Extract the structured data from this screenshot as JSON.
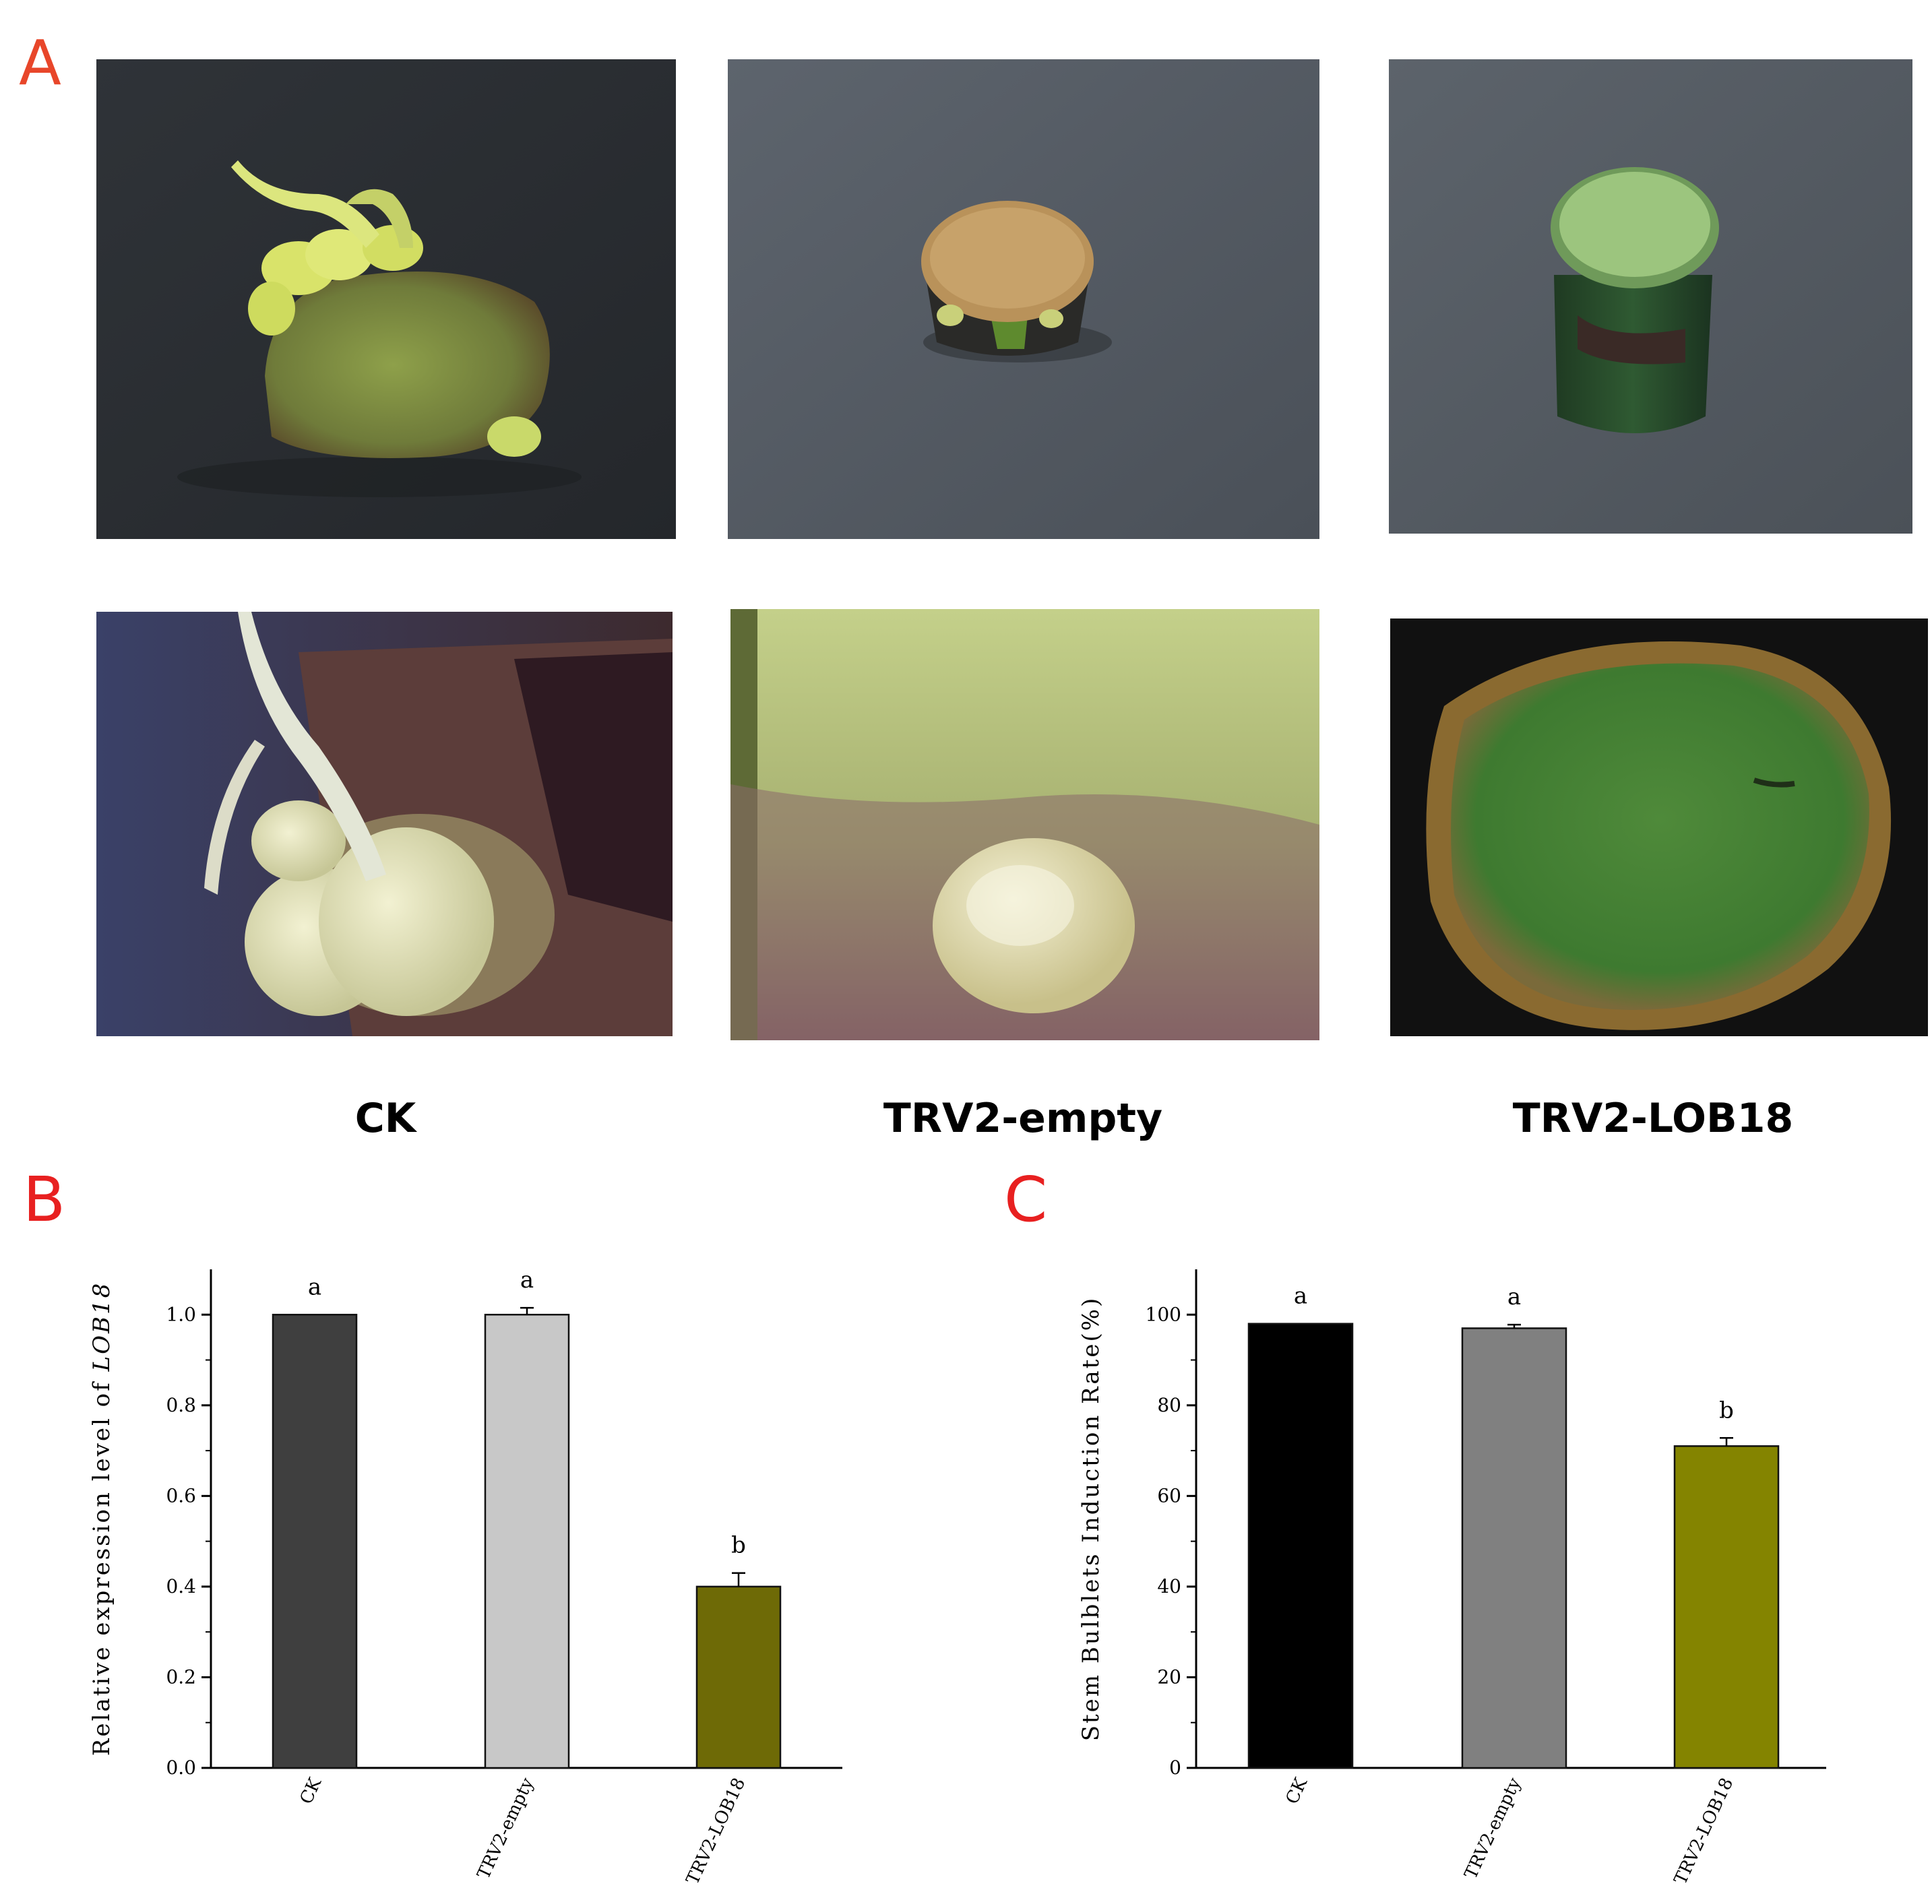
{
  "panel_a": {
    "letter": "A",
    "letter_color": "#e8462a",
    "photos_top": [
      {
        "name": "CK",
        "subject": "stem-segment-with-bulblets-and-shoots"
      },
      {
        "name": "TRV2-empty",
        "subject": "stem-segment-with-callus-top"
      },
      {
        "name": "TRV2-LOB18",
        "subject": "stem-segment-green-top"
      }
    ],
    "photos_bottom": [
      {
        "name": "CK",
        "subject": "closeup-bulblets-and-roots"
      },
      {
        "name": "TRV2-empty",
        "subject": "closeup-single-bulblet"
      },
      {
        "name": "TRV2-LOB18",
        "subject": "closeup-cross-section"
      }
    ],
    "group_labels": [
      "CK",
      "TRV2-empty",
      "TRV2-LOB18"
    ]
  },
  "panel_b": {
    "letter": "B",
    "letter_color": "#e82020"
  },
  "panel_c": {
    "letter": "C",
    "letter_color": "#e82020"
  },
  "chart_data": [
    {
      "type": "bar",
      "panel": "B",
      "categories": [
        "CK",
        "TRV2-empty",
        "TRV2-LOB18"
      ],
      "values": [
        1.0,
        1.0,
        0.4
      ],
      "errors": [
        0.0,
        0.015,
        0.03
      ],
      "significance": [
        "a",
        "a",
        "b"
      ],
      "colors": [
        "#3f3f3f",
        "#c8c8c8",
        "#6e6a06"
      ],
      "ylabel_prefix": "Relative expression level of ",
      "ylabel_gene": "LOB18",
      "ylim": [
        0,
        1.1
      ],
      "yticks": [
        "0.0",
        "0.2",
        "0.4",
        "0.6",
        "0.8",
        "1.0"
      ],
      "ytick_values": [
        0,
        0.2,
        0.4,
        0.6,
        0.8,
        1.0
      ]
    },
    {
      "type": "bar",
      "panel": "C",
      "categories": [
        "CK",
        "TRV2-empty",
        "TRV2-LOB18"
      ],
      "values": [
        98,
        97,
        71
      ],
      "errors": [
        0,
        0.8,
        1.8
      ],
      "significance": [
        "a",
        "a",
        "b"
      ],
      "colors": [
        "#000000",
        "#808080",
        "#848400"
      ],
      "ylabel": "Stem Bulblets Induction Rate(%)",
      "ylim": [
        0,
        110
      ],
      "yticks": [
        "0",
        "20",
        "40",
        "60",
        "80",
        "100"
      ],
      "ytick_values": [
        0,
        20,
        40,
        60,
        80,
        100
      ]
    }
  ]
}
